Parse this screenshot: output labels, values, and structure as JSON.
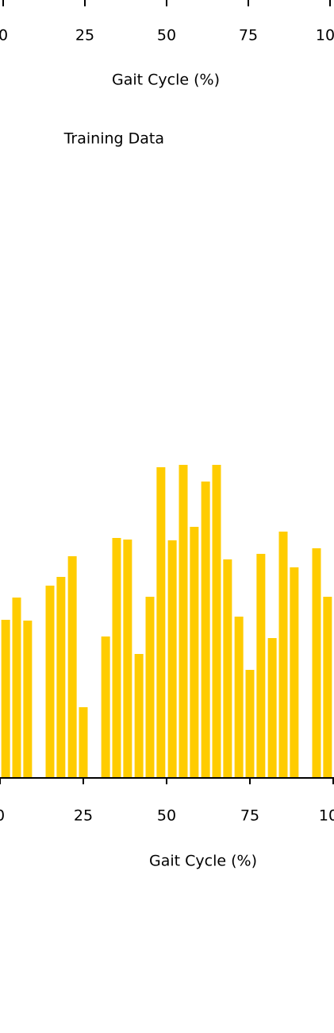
{
  "chart_data": [
    {
      "type": "line",
      "xlabel": "Gait Cycle (%)",
      "xlim": [
        0,
        100
      ],
      "xticks": [
        0,
        25,
        50,
        75,
        100
      ]
    },
    {
      "type": "bar",
      "title": "Training Data",
      "xlabel": "Gait Cycle (%)",
      "color": "#ffcc00",
      "xlim": [
        0,
        100
      ],
      "xticks": [
        0,
        25,
        50,
        75,
        100
      ],
      "ylim": [
        0,
        400
      ],
      "x": [
        1.7,
        5,
        8.3,
        11.7,
        15,
        18.3,
        21.7,
        25,
        28.3,
        31.7,
        35,
        38.3,
        41.7,
        45,
        48.3,
        51.7,
        55,
        58.3,
        61.7,
        65,
        68.3,
        71.7,
        75,
        78.3,
        81.7,
        85,
        88.3,
        91.7,
        95,
        98.3
      ],
      "values": [
        199,
        227,
        198,
        0,
        242,
        253,
        279,
        89,
        0,
        178,
        302,
        300,
        156,
        228,
        391,
        299,
        394,
        316,
        373,
        394,
        275,
        203,
        136,
        282,
        176,
        310,
        265,
        0,
        289,
        228
      ]
    }
  ]
}
